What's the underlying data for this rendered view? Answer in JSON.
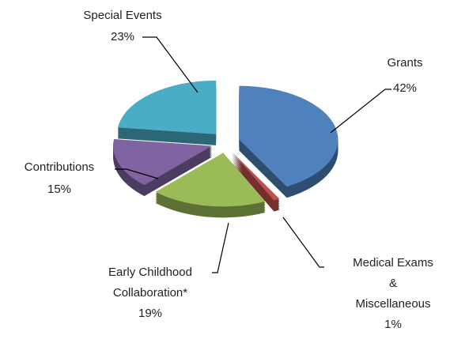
{
  "chart_data": {
    "type": "pie",
    "categories": [
      "Grants",
      "Medical Exams & Miscellaneous",
      "Early Childhood Collaboration*",
      "Contributions",
      "Special Events"
    ],
    "values": [
      42,
      1,
      19,
      15,
      23
    ],
    "value_labels": [
      "42%",
      "1%",
      "19%",
      "15%",
      "23%"
    ],
    "colors": [
      "#4f81bd",
      "#c0504d",
      "#9bbb59",
      "#8064a2",
      "#4bacc6"
    ]
  }
}
